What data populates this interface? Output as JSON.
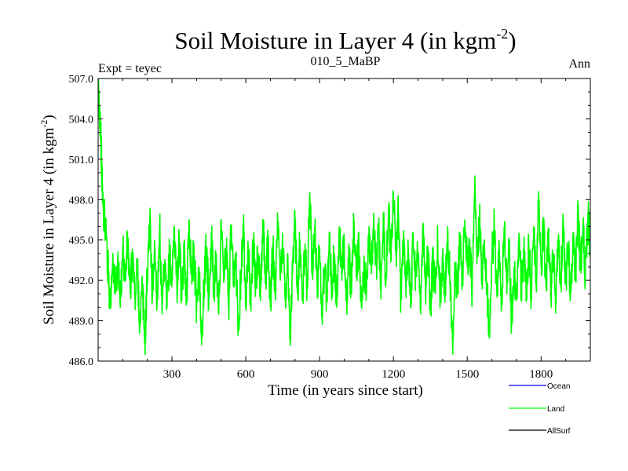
{
  "chart_data": {
    "type": "line",
    "title": "Soil Moisture in Layer 4 (in kgm",
    "title_superscript": "-2",
    "title_close": ")",
    "left_label": "Expt = teyec",
    "center_label": "010_5_MaBP",
    "right_label": "Ann",
    "xlabel": "Time (in years since start)",
    "ylabel": "Soil Moisture in Layer 4 (in kgm",
    "ylabel_superscript": "-2",
    "ylabel_close": ")",
    "xlim": [
      0,
      2000
    ],
    "ylim": [
      486.0,
      507.0
    ],
    "xticks": [
      300,
      600,
      900,
      1200,
      1500,
      1800
    ],
    "xtick_labels": [
      "300",
      "600",
      "900",
      "1200",
      "1500",
      "1800"
    ],
    "yticks": [
      486.0,
      489.0,
      492.0,
      495.0,
      498.0,
      501.0,
      504.0,
      507.0
    ],
    "ytick_labels": [
      "486.0",
      "489.0",
      "492.0",
      "495.0",
      "498.0",
      "501.0",
      "504.0",
      "507.0"
    ],
    "grid": false,
    "legend_position": "bottom-right, below plot",
    "series": [
      {
        "name": "Ocean",
        "color": "#0000ff",
        "points": []
      },
      {
        "name": "Land",
        "color": "#00ff00",
        "points": [
          [
            0,
            506.5
          ],
          [
            5,
            505.0
          ],
          [
            10,
            503.5
          ],
          [
            15,
            500.0
          ],
          [
            20,
            497.5
          ],
          [
            30,
            496.0
          ],
          [
            40,
            493.0
          ],
          [
            50,
            490.0
          ],
          [
            60,
            494.0
          ],
          [
            70,
            491.0
          ],
          [
            80,
            493.5
          ],
          [
            90,
            490.0
          ],
          [
            100,
            494.5
          ],
          [
            110,
            492.0
          ],
          [
            120,
            495.0
          ],
          [
            130,
            491.0
          ],
          [
            140,
            494.0
          ],
          [
            150,
            490.5
          ],
          [
            160,
            493.0
          ],
          [
            170,
            488.5
          ],
          [
            180,
            491.5
          ],
          [
            190,
            487.3
          ],
          [
            200,
            492.5
          ],
          [
            210,
            496.5
          ],
          [
            220,
            491.0
          ],
          [
            230,
            494.5
          ],
          [
            240,
            490.5
          ],
          [
            250,
            496.0
          ],
          [
            260,
            489.5
          ],
          [
            270,
            493.0
          ],
          [
            280,
            490.0
          ],
          [
            290,
            494.0
          ],
          [
            300,
            492.0
          ],
          [
            310,
            496.0
          ],
          [
            320,
            491.5
          ],
          [
            330,
            495.0
          ],
          [
            340,
            490.5
          ],
          [
            350,
            494.0
          ],
          [
            360,
            491.0
          ],
          [
            370,
            496.5
          ],
          [
            380,
            492.5
          ],
          [
            390,
            494.0
          ],
          [
            400,
            490.0
          ],
          [
            410,
            493.0
          ],
          [
            420,
            487.2
          ],
          [
            430,
            491.5
          ],
          [
            440,
            494.5
          ],
          [
            450,
            490.5
          ],
          [
            460,
            495.5
          ],
          [
            470,
            491.0
          ],
          [
            480,
            494.0
          ],
          [
            490,
            489.5
          ],
          [
            500,
            496.5
          ],
          [
            510,
            492.0
          ],
          [
            520,
            494.5
          ],
          [
            530,
            490.0
          ],
          [
            540,
            496.0
          ],
          [
            550,
            491.5
          ],
          [
            560,
            493.5
          ],
          [
            570,
            488.5
          ],
          [
            580,
            492.5
          ],
          [
            590,
            496.0
          ],
          [
            600,
            491.0
          ],
          [
            610,
            494.5
          ],
          [
            620,
            490.0
          ],
          [
            630,
            495.0
          ],
          [
            640,
            491.5
          ],
          [
            650,
            494.0
          ],
          [
            660,
            490.5
          ],
          [
            670,
            496.5
          ],
          [
            680,
            492.0
          ],
          [
            690,
            495.0
          ],
          [
            700,
            490.0
          ],
          [
            710,
            494.5
          ],
          [
            720,
            491.5
          ],
          [
            730,
            496.0
          ],
          [
            740,
            492.0
          ],
          [
            750,
            495.5
          ],
          [
            760,
            490.5
          ],
          [
            770,
            494.0
          ],
          [
            780,
            488.0
          ],
          [
            790,
            492.5
          ],
          [
            800,
            496.5
          ],
          [
            810,
            491.0
          ],
          [
            820,
            495.0
          ],
          [
            830,
            490.5
          ],
          [
            840,
            494.0
          ],
          [
            850,
            491.5
          ],
          [
            860,
            498.5
          ],
          [
            870,
            493.0
          ],
          [
            880,
            496.0
          ],
          [
            890,
            491.5
          ],
          [
            900,
            494.5
          ],
          [
            910,
            489.5
          ],
          [
            920,
            493.0
          ],
          [
            930,
            490.5
          ],
          [
            940,
            495.5
          ],
          [
            950,
            491.0
          ],
          [
            960,
            494.0
          ],
          [
            970,
            490.0
          ],
          [
            980,
            496.0
          ],
          [
            990,
            492.0
          ],
          [
            1000,
            495.0
          ],
          [
            1010,
            490.5
          ],
          [
            1020,
            493.5
          ],
          [
            1030,
            491.0
          ],
          [
            1040,
            496.5
          ],
          [
            1050,
            492.5
          ],
          [
            1060,
            494.5
          ],
          [
            1070,
            490.0
          ],
          [
            1080,
            493.5
          ],
          [
            1090,
            491.0
          ],
          [
            1100,
            495.5
          ],
          [
            1110,
            492.5
          ],
          [
            1120,
            497.0
          ],
          [
            1130,
            493.0
          ],
          [
            1140,
            495.5
          ],
          [
            1150,
            491.5
          ],
          [
            1160,
            496.0
          ],
          [
            1170,
            492.0
          ],
          [
            1180,
            497.5
          ],
          [
            1190,
            493.5
          ],
          [
            1200,
            498.5
          ],
          [
            1210,
            494.0
          ],
          [
            1220,
            497.0
          ],
          [
            1230,
            490.5
          ],
          [
            1240,
            495.0
          ],
          [
            1250,
            492.0
          ],
          [
            1260,
            494.5
          ],
          [
            1270,
            490.0
          ],
          [
            1280,
            495.5
          ],
          [
            1290,
            492.5
          ],
          [
            1300,
            494.0
          ],
          [
            1310,
            490.5
          ],
          [
            1320,
            496.0
          ],
          [
            1330,
            491.5
          ],
          [
            1340,
            494.5
          ],
          [
            1350,
            489.5
          ],
          [
            1360,
            493.5
          ],
          [
            1370,
            491.0
          ],
          [
            1380,
            495.0
          ],
          [
            1390,
            490.5
          ],
          [
            1400,
            494.0
          ],
          [
            1410,
            491.0
          ],
          [
            1420,
            496.0
          ],
          [
            1430,
            492.0
          ],
          [
            1440,
            487.5
          ],
          [
            1450,
            493.0
          ],
          [
            1460,
            491.0
          ],
          [
            1470,
            495.5
          ],
          [
            1480,
            492.0
          ],
          [
            1490,
            496.5
          ],
          [
            1500,
            493.0
          ],
          [
            1510,
            495.0
          ],
          [
            1520,
            491.0
          ],
          [
            1530,
            498.8
          ],
          [
            1540,
            494.0
          ],
          [
            1550,
            496.5
          ],
          [
            1560,
            492.5
          ],
          [
            1570,
            495.0
          ],
          [
            1580,
            491.5
          ],
          [
            1590,
            487.8
          ],
          [
            1600,
            493.5
          ],
          [
            1610,
            496.0
          ],
          [
            1620,
            491.0
          ],
          [
            1630,
            494.5
          ],
          [
            1640,
            490.5
          ],
          [
            1650,
            496.0
          ],
          [
            1660,
            492.0
          ],
          [
            1670,
            494.5
          ],
          [
            1680,
            489.0
          ],
          [
            1690,
            493.0
          ],
          [
            1700,
            490.5
          ],
          [
            1710,
            495.5
          ],
          [
            1720,
            491.5
          ],
          [
            1730,
            494.0
          ],
          [
            1740,
            490.5
          ],
          [
            1750,
            494.5
          ],
          [
            1760,
            491.0
          ],
          [
            1770,
            496.0
          ],
          [
            1780,
            492.0
          ],
          [
            1790,
            498.6
          ],
          [
            1800,
            493.0
          ],
          [
            1810,
            496.0
          ],
          [
            1820,
            491.5
          ],
          [
            1830,
            495.5
          ],
          [
            1840,
            491.0
          ],
          [
            1850,
            494.0
          ],
          [
            1860,
            490.5
          ],
          [
            1870,
            495.0
          ],
          [
            1880,
            491.5
          ],
          [
            1890,
            496.5
          ],
          [
            1900,
            492.0
          ],
          [
            1910,
            494.5
          ],
          [
            1920,
            491.0
          ],
          [
            1930,
            495.5
          ],
          [
            1940,
            492.5
          ],
          [
            1950,
            497.0
          ],
          [
            1960,
            493.0
          ],
          [
            1970,
            496.0
          ],
          [
            1980,
            492.5
          ],
          [
            1990,
            497.0
          ],
          [
            2000,
            494.5
          ]
        ]
      },
      {
        "name": "AllSurf",
        "color": "#000000",
        "points": []
      }
    ]
  }
}
